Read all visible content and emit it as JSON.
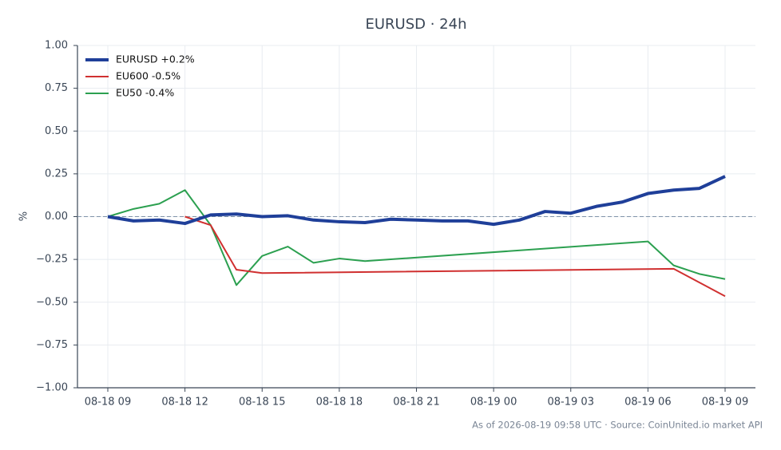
{
  "chart_data": {
    "type": "line",
    "title": "EURUSD · 24h",
    "ylabel": "%",
    "footnote": "As of 2026-08-19 09:58 UTC · Source: CoinUnited.io market API",
    "ylim": [
      -1,
      1
    ],
    "yticks": [
      {
        "value": -1,
        "label": "−1.00"
      },
      {
        "value": -0.75,
        "label": "−0.75"
      },
      {
        "value": -0.5,
        "label": "−0.50"
      },
      {
        "value": -0.25,
        "label": "−0.25"
      },
      {
        "value": 0,
        "label": "0.00"
      },
      {
        "value": 0.25,
        "label": "0.25"
      },
      {
        "value": 0.5,
        "label": "0.50"
      },
      {
        "value": 0.75,
        "label": "0.75"
      },
      {
        "value": 1,
        "label": "1.00"
      }
    ],
    "xticks": [
      "08-18 09",
      "08-18 12",
      "08-18 15",
      "08-18 18",
      "08-18 21",
      "08-19 00",
      "08-19 03",
      "08-19 06",
      "08-19 09"
    ],
    "grid": true,
    "hline": 0,
    "legend": "upper left",
    "series": [
      {
        "name": "EURUSD +0.2%",
        "color": "#1f3f99",
        "line_width": 4,
        "x": [
          "08-18 09",
          "08-18 10",
          "08-18 11",
          "08-18 12",
          "08-18 13",
          "08-18 14",
          "08-18 15",
          "08-18 16",
          "08-18 17",
          "08-18 18",
          "08-18 19",
          "08-18 20",
          "08-18 21",
          "08-18 22",
          "08-18 23",
          "08-19 00",
          "08-19 01",
          "08-19 02",
          "08-19 03",
          "08-19 04",
          "08-19 05",
          "08-19 06",
          "08-19 07",
          "08-19 08",
          "08-19 09"
        ],
        "values": [
          0.0,
          -0.025,
          -0.02,
          -0.04,
          0.01,
          0.015,
          0.0,
          0.005,
          -0.02,
          -0.03,
          -0.035,
          -0.015,
          -0.02,
          -0.025,
          -0.025,
          -0.045,
          -0.02,
          0.03,
          0.02,
          0.06,
          0.085,
          0.135,
          0.155,
          0.165,
          0.235
        ]
      },
      {
        "name": "EU600 -0.5%",
        "color": "#d03030",
        "line_width": 2,
        "x": [
          "08-18 12",
          "08-18 13",
          "08-18 14",
          "08-18 15",
          "08-19 07",
          "08-19 09"
        ],
        "values": [
          0.0,
          -0.05,
          -0.31,
          -0.33,
          -0.305,
          -0.465
        ]
      },
      {
        "name": "EU50 -0.4%",
        "color": "#2ca050",
        "line_width": 2,
        "x": [
          "08-18 09",
          "08-18 10",
          "08-18 11",
          "08-18 12",
          "08-18 13",
          "08-18 14",
          "08-18 15",
          "08-18 16",
          "08-18 17",
          "08-18 18",
          "08-18 19",
          "08-19 06",
          "08-19 07",
          "08-19 08",
          "08-19 09"
        ],
        "values": [
          0.0,
          0.045,
          0.075,
          0.155,
          -0.05,
          -0.4,
          -0.23,
          -0.175,
          -0.27,
          -0.245,
          -0.26,
          -0.145,
          -0.285,
          -0.335,
          -0.365
        ]
      }
    ]
  }
}
